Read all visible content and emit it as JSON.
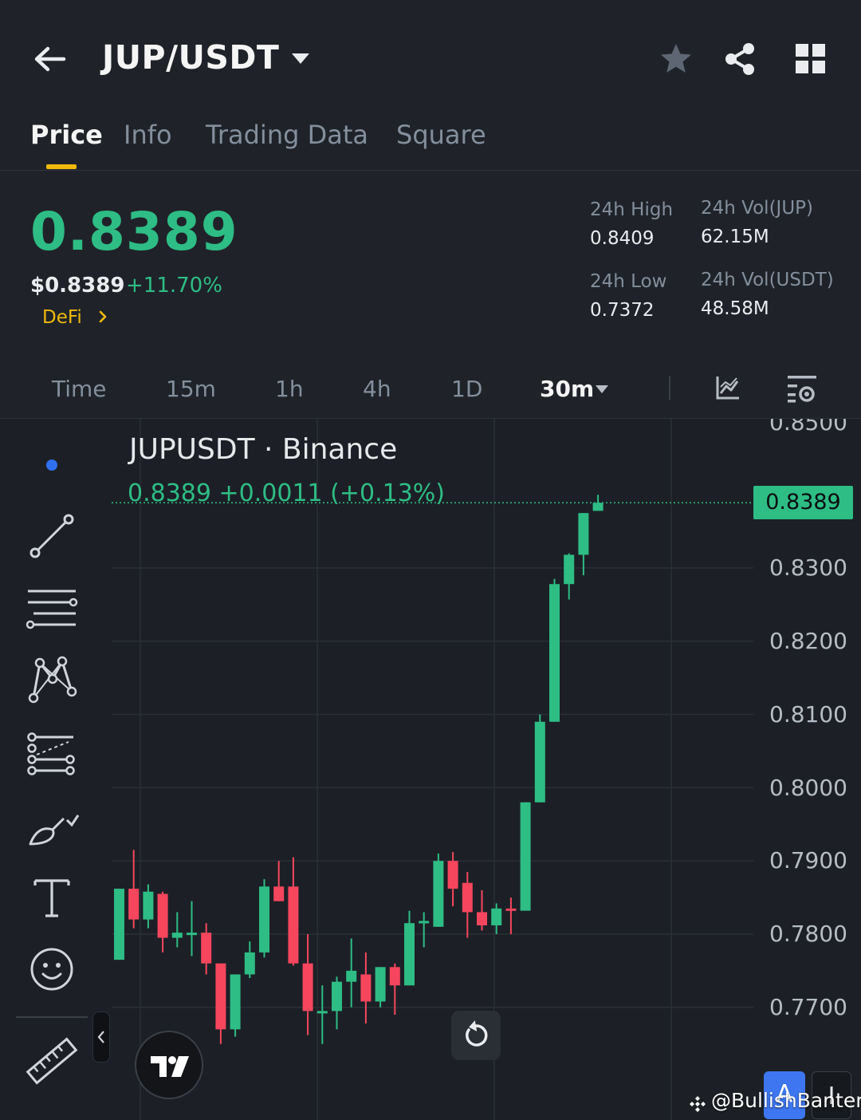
{
  "header": {
    "pair": "JUP/USDT"
  },
  "tabs": [
    "Price",
    "Info",
    "Trading Data",
    "Square"
  ],
  "price": {
    "last": "0.8389",
    "usd": "$0.8389",
    "change": "+11.70%",
    "tag": "DeFi"
  },
  "stats": {
    "high_label": "24h High",
    "high_value": "0.8409",
    "low_label": "24h Low",
    "low_value": "0.7372",
    "vol_base_label": "24h Vol(JUP)",
    "vol_base_value": "62.15M",
    "vol_quote_label": "24h Vol(USDT)",
    "vol_quote_value": "48.58M"
  },
  "intervals": [
    "Time",
    "15m",
    "1h",
    "4h",
    "1D"
  ],
  "selected_interval": "30m",
  "chart": {
    "symbol_title": "JUPUSDT · Binance",
    "ohlc_text": "0.8389  +0.0011  (+0.13%)",
    "price_tag": "0.8389",
    "axis_labels": [
      "0.8500",
      "0.8300",
      "0.8200",
      "0.8100",
      "0.8000",
      "0.7900",
      "0.7800",
      "0.7700"
    ],
    "mini_button_label": "A",
    "watermark": "@BullishBanter"
  },
  "colors": {
    "up": "#2ebd85",
    "down": "#f6465d",
    "accent": "#f0b90b",
    "background": "#1f2329"
  },
  "chart_data": {
    "type": "candlestick",
    "title": "JUPUSDT · Binance",
    "ylim": [
      0.763,
      0.851
    ],
    "yticks": [
      0.77,
      0.78,
      0.79,
      0.8,
      0.81,
      0.82,
      0.83,
      0.85
    ],
    "last_price": 0.8389,
    "candles": [
      {
        "o": 0.7765,
        "h": 0.7862,
        "l": 0.7765,
        "c": 0.7862
      },
      {
        "o": 0.7862,
        "h": 0.7915,
        "l": 0.7808,
        "c": 0.782
      },
      {
        "o": 0.782,
        "h": 0.7868,
        "l": 0.7808,
        "c": 0.7858
      },
      {
        "o": 0.7855,
        "h": 0.7858,
        "l": 0.7775,
        "c": 0.7795
      },
      {
        "o": 0.7795,
        "h": 0.783,
        "l": 0.7782,
        "c": 0.7802
      },
      {
        "o": 0.78,
        "h": 0.7845,
        "l": 0.777,
        "c": 0.7802
      },
      {
        "o": 0.7802,
        "h": 0.7815,
        "l": 0.7745,
        "c": 0.776
      },
      {
        "o": 0.776,
        "h": 0.776,
        "l": 0.765,
        "c": 0.767
      },
      {
        "o": 0.767,
        "h": 0.774,
        "l": 0.766,
        "c": 0.7745
      },
      {
        "o": 0.7745,
        "h": 0.779,
        "l": 0.774,
        "c": 0.7775
      },
      {
        "o": 0.7775,
        "h": 0.7875,
        "l": 0.7768,
        "c": 0.7865
      },
      {
        "o": 0.7865,
        "h": 0.79,
        "l": 0.7845,
        "c": 0.7845
      },
      {
        "o": 0.7865,
        "h": 0.7905,
        "l": 0.7757,
        "c": 0.776
      },
      {
        "o": 0.776,
        "h": 0.78,
        "l": 0.7662,
        "c": 0.7695
      },
      {
        "o": 0.7695,
        "h": 0.773,
        "l": 0.765,
        "c": 0.7695
      },
      {
        "o": 0.7695,
        "h": 0.7742,
        "l": 0.767,
        "c": 0.7735
      },
      {
        "o": 0.7735,
        "h": 0.7794,
        "l": 0.77,
        "c": 0.775
      },
      {
        "o": 0.7745,
        "h": 0.7775,
        "l": 0.7678,
        "c": 0.7708
      },
      {
        "o": 0.7708,
        "h": 0.7755,
        "l": 0.77,
        "c": 0.7755
      },
      {
        "o": 0.7755,
        "h": 0.776,
        "l": 0.769,
        "c": 0.773
      },
      {
        "o": 0.773,
        "h": 0.7832,
        "l": 0.773,
        "c": 0.7815
      },
      {
        "o": 0.7815,
        "h": 0.783,
        "l": 0.7782,
        "c": 0.7818
      },
      {
        "o": 0.781,
        "h": 0.791,
        "l": 0.781,
        "c": 0.79
      },
      {
        "o": 0.79,
        "h": 0.7912,
        "l": 0.7838,
        "c": 0.7862
      },
      {
        "o": 0.787,
        "h": 0.7885,
        "l": 0.7795,
        "c": 0.783
      },
      {
        "o": 0.783,
        "h": 0.786,
        "l": 0.7805,
        "c": 0.7812
      },
      {
        "o": 0.7812,
        "h": 0.7842,
        "l": 0.78,
        "c": 0.7835
      },
      {
        "o": 0.7835,
        "h": 0.785,
        "l": 0.78,
        "c": 0.7832
      },
      {
        "o": 0.7832,
        "h": 0.798,
        "l": 0.7832,
        "c": 0.798
      },
      {
        "o": 0.798,
        "h": 0.81,
        "l": 0.798,
        "c": 0.809
      },
      {
        "o": 0.809,
        "h": 0.8285,
        "l": 0.809,
        "c": 0.8278
      },
      {
        "o": 0.8278,
        "h": 0.832,
        "l": 0.8257,
        "c": 0.8318
      },
      {
        "o": 0.8318,
        "h": 0.8375,
        "l": 0.829,
        "c": 0.8375
      },
      {
        "o": 0.8378,
        "h": 0.84,
        "l": 0.8383,
        "c": 0.8389
      }
    ]
  }
}
